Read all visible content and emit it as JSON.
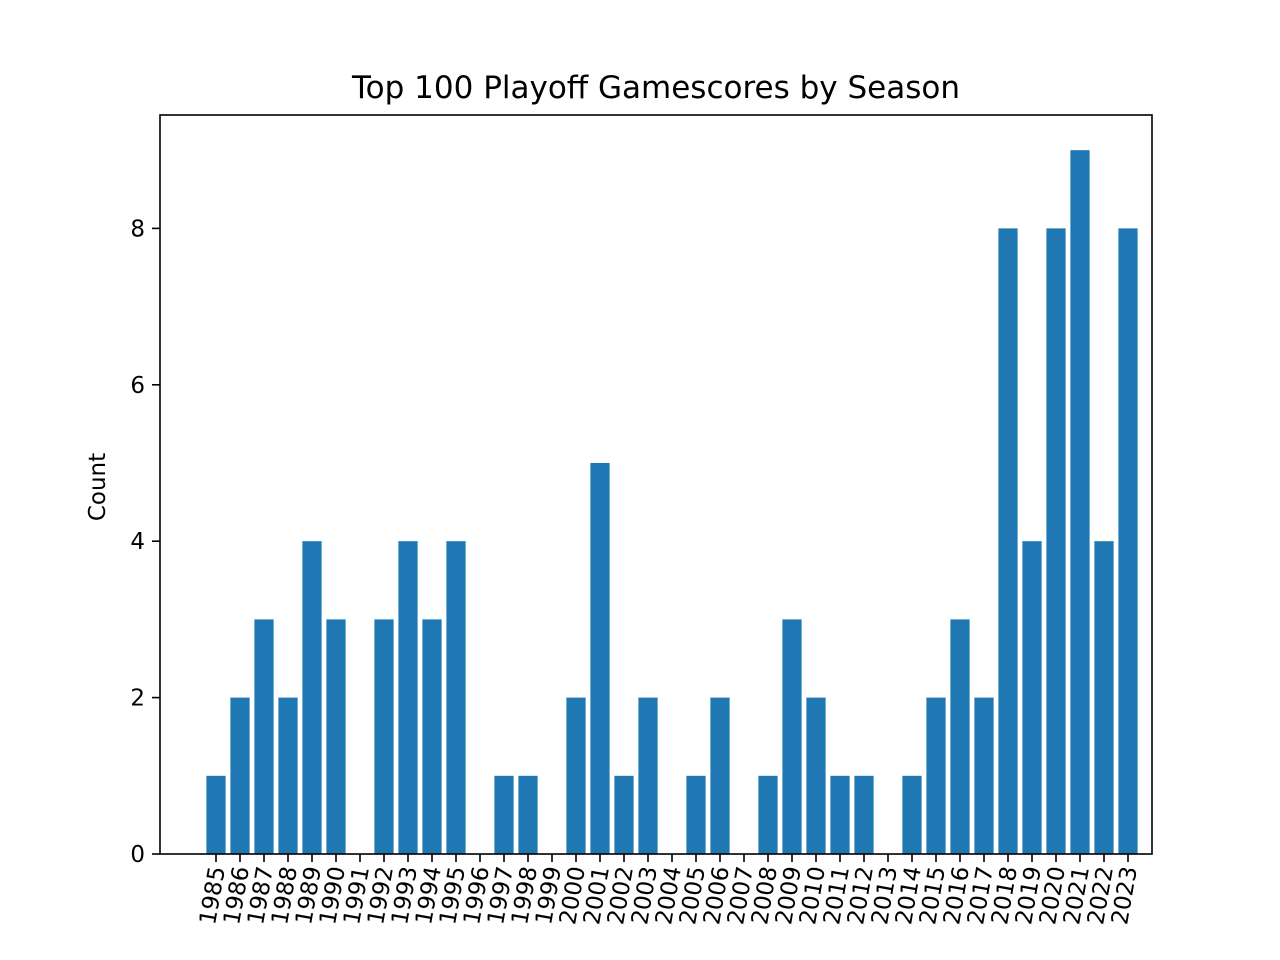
{
  "chart_data": {
    "type": "bar",
    "title": "Top 100 Playoff Gamescores by Season",
    "xlabel": "",
    "ylabel": "Count",
    "categories": [
      "1985",
      "1986",
      "1987",
      "1988",
      "1989",
      "1990",
      "1991",
      "1992",
      "1993",
      "1994",
      "1995",
      "1996",
      "1997",
      "1998",
      "1999",
      "2000",
      "2001",
      "2002",
      "2003",
      "2004",
      "2005",
      "2006",
      "2007",
      "2008",
      "2009",
      "2010",
      "2011",
      "2012",
      "2013",
      "2014",
      "2015",
      "2016",
      "2017",
      "2018",
      "2019",
      "2020",
      "2021",
      "2022",
      "2023"
    ],
    "values": [
      1,
      2,
      3,
      2,
      4,
      3,
      0,
      3,
      4,
      3,
      4,
      0,
      1,
      1,
      0,
      2,
      5,
      1,
      2,
      0,
      1,
      2,
      0,
      1,
      3,
      2,
      1,
      1,
      0,
      1,
      2,
      3,
      2,
      8,
      4,
      8,
      9,
      4,
      8
    ],
    "ylim": [
      0,
      9.45
    ],
    "yticks": [
      0,
      2,
      4,
      6,
      8
    ],
    "xtick_rotation": -80,
    "grid": false,
    "legend": "none",
    "bar_color": "#1f77b4"
  }
}
